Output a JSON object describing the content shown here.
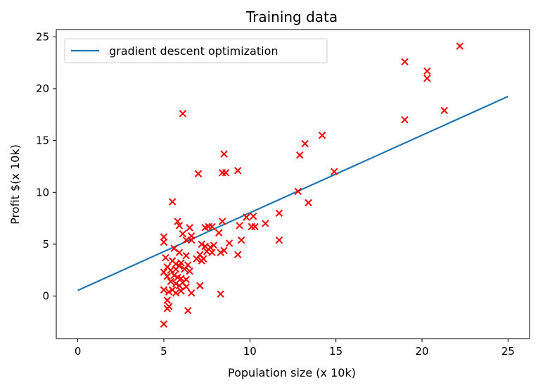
{
  "chart_data": {
    "type": "scatter",
    "title": "Training data",
    "xlabel": "Population size (x 10k)",
    "ylabel": "Profit $(x 10k)",
    "xlim": [
      -1.25,
      26.25
    ],
    "ylim": [
      -4.1,
      25.7
    ],
    "xticks": [
      0,
      5,
      10,
      15,
      20,
      25
    ],
    "yticks": [
      0,
      5,
      10,
      15,
      20,
      25
    ],
    "grid": false,
    "legend_position": "top-left",
    "series": [
      {
        "name": "gradient descent optimization",
        "kind": "line",
        "color": "#1f77b4",
        "x": [
          0,
          25
        ],
        "y": [
          0.55,
          19.25
        ]
      },
      {
        "kind": "scatter",
        "marker": "x",
        "color": "#ff0000",
        "points": [
          [
            22.2,
            24.1
          ],
          [
            19.0,
            22.6
          ],
          [
            20.3,
            21.7
          ],
          [
            20.3,
            21.0
          ],
          [
            21.3,
            17.9
          ],
          [
            19.0,
            17.0
          ],
          [
            14.2,
            15.5
          ],
          [
            13.2,
            14.7
          ],
          [
            12.9,
            13.6
          ],
          [
            14.9,
            12.0
          ],
          [
            6.1,
            17.6
          ],
          [
            8.5,
            13.7
          ],
          [
            7.0,
            11.8
          ],
          [
            8.4,
            11.9
          ],
          [
            8.6,
            11.9
          ],
          [
            9.3,
            12.1
          ],
          [
            12.8,
            10.1
          ],
          [
            13.4,
            9.0
          ],
          [
            5.5,
            9.1
          ],
          [
            11.7,
            8.0
          ],
          [
            10.2,
            7.7
          ],
          [
            10.9,
            7.0
          ],
          [
            9.8,
            7.6
          ],
          [
            10.1,
            6.7
          ],
          [
            10.3,
            6.7
          ],
          [
            9.4,
            6.8
          ],
          [
            8.4,
            7.2
          ],
          [
            8.2,
            6.1
          ],
          [
            7.6,
            6.7
          ],
          [
            7.8,
            6.7
          ],
          [
            7.4,
            6.6
          ],
          [
            6.5,
            6.6
          ],
          [
            5.8,
            7.2
          ],
          [
            5.9,
            6.8
          ],
          [
            6.1,
            6.0
          ],
          [
            6.6,
            5.8
          ],
          [
            6.3,
            5.4
          ],
          [
            6.6,
            5.4
          ],
          [
            5.0,
            5.7
          ],
          [
            5.0,
            5.2
          ],
          [
            11.7,
            5.4
          ],
          [
            9.5,
            5.4
          ],
          [
            8.8,
            5.1
          ],
          [
            7.2,
            5.0
          ],
          [
            7.4,
            4.8
          ],
          [
            7.7,
            4.7
          ],
          [
            7.9,
            4.9
          ],
          [
            8.5,
            4.4
          ],
          [
            7.5,
            4.3
          ],
          [
            7.8,
            4.2
          ],
          [
            8.3,
            4.2
          ],
          [
            7.1,
            4.0
          ],
          [
            7.3,
            3.6
          ],
          [
            9.3,
            4.0
          ],
          [
            6.9,
            3.6
          ],
          [
            7.2,
            3.4
          ],
          [
            5.6,
            4.6
          ],
          [
            5.9,
            4.2
          ],
          [
            6.3,
            3.9
          ],
          [
            5.1,
            3.7
          ],
          [
            5.5,
            3.4
          ],
          [
            5.7,
            3.1
          ],
          [
            6.0,
            3.2
          ],
          [
            6.4,
            3.0
          ],
          [
            5.2,
            2.8
          ],
          [
            5.4,
            2.5
          ],
          [
            5.7,
            2.6
          ],
          [
            5.9,
            2.9
          ],
          [
            6.2,
            2.6
          ],
          [
            6.5,
            2.4
          ],
          [
            5.0,
            2.3
          ],
          [
            5.2,
            1.9
          ],
          [
            5.6,
            2.0
          ],
          [
            5.8,
            1.8
          ],
          [
            6.0,
            1.7
          ],
          [
            6.3,
            1.6
          ],
          [
            5.4,
            1.4
          ],
          [
            5.7,
            1.2
          ],
          [
            5.9,
            1.0
          ],
          [
            6.1,
            1.3
          ],
          [
            6.3,
            0.9
          ],
          [
            7.1,
            1.0
          ],
          [
            5.0,
            0.6
          ],
          [
            5.3,
            0.4
          ],
          [
            5.5,
            0.6
          ],
          [
            5.7,
            0.3
          ],
          [
            6.0,
            0.5
          ],
          [
            6.6,
            0.3
          ],
          [
            8.3,
            0.2
          ],
          [
            5.2,
            -0.4
          ],
          [
            5.3,
            -1.0
          ],
          [
            5.2,
            -1.2
          ],
          [
            6.4,
            -1.4
          ],
          [
            5.0,
            -2.7
          ]
        ]
      }
    ]
  }
}
